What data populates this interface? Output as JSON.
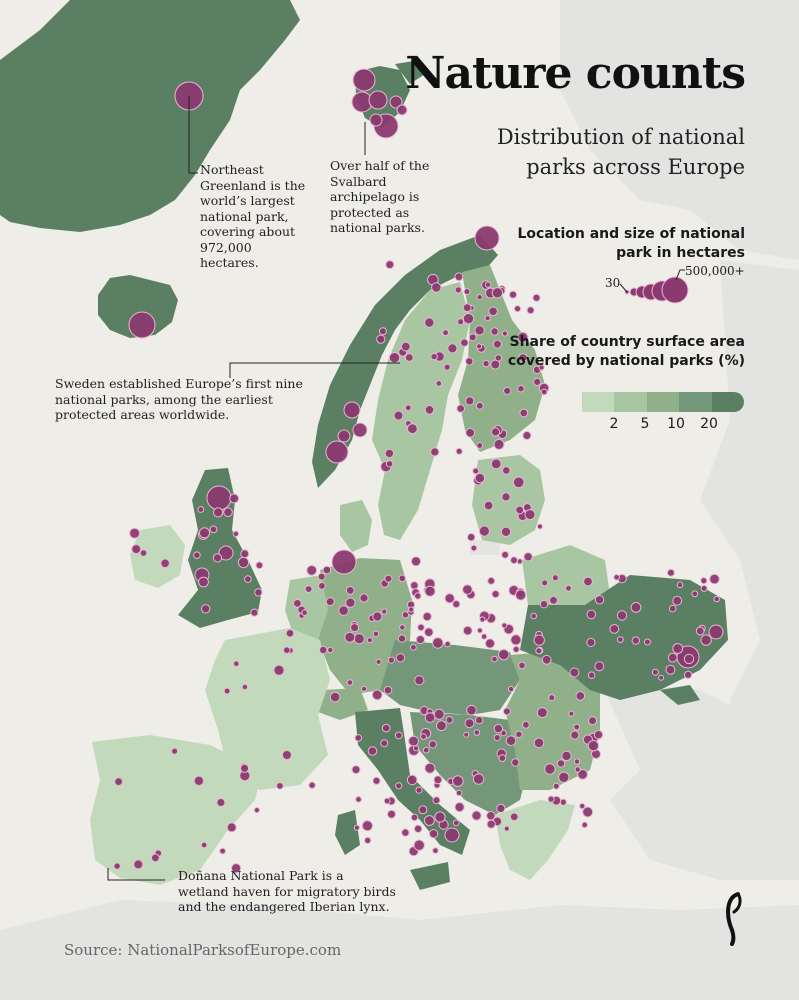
{
  "title": "Nature counts",
  "subtitle": "Distribution of national parks across Europe",
  "legend_size": {
    "title": "Location and size of national park in hectares",
    "min_label": "30",
    "max_label": "500,000+"
  },
  "legend_share": {
    "title": "Share of country surface area covered by national parks (%)",
    "ticks": [
      "2",
      "5",
      "10",
      "20"
    ],
    "colors": [
      "#c3d9bc",
      "#a9c6a2",
      "#8fb089",
      "#74977a",
      "#5b7f63"
    ]
  },
  "annotations": {
    "greenland": "Northeast Greenland is the world’s largest national park, covering about 972,000 hectares.",
    "svalbard": "Over half of the Svalbard archipelago is protected as national parks.",
    "sweden": "Sweden established Europe’s first nine national parks, among the earliest protected areas worldwide.",
    "donana": "Doñana National Park is a wetland haven for migratory birds and the endangered Iberian lynx."
  },
  "source": "Source: NationalParksofEurope.com",
  "colors": {
    "background": "#efede8",
    "non_europe_land": "#e3e3e1",
    "park_marker": "#8a3a6e",
    "dark_green": "#5b7f63"
  }
}
